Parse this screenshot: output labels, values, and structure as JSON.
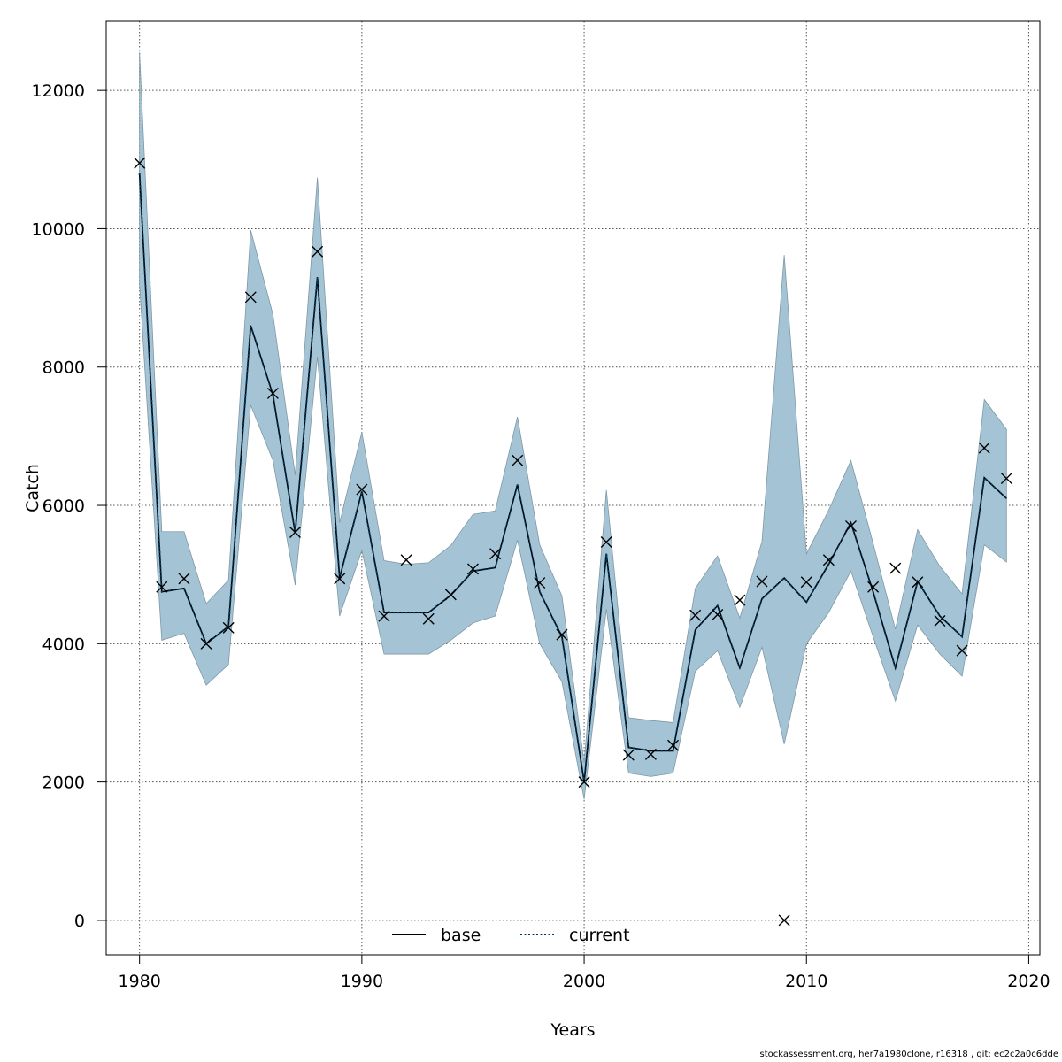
{
  "chart_data": {
    "type": "line",
    "xlabel": "Years",
    "ylabel": "Catch",
    "xlim": [
      1978.5,
      2020.5
    ],
    "ylim": [
      -500,
      13000
    ],
    "xticks": [
      1980,
      1990,
      2000,
      2010,
      2020
    ],
    "yticks": [
      0,
      2000,
      4000,
      6000,
      8000,
      10000,
      12000
    ],
    "grid": true,
    "legend": {
      "position": "bottom-center",
      "entries": [
        "base",
        "current"
      ]
    },
    "x": [
      1980,
      1981,
      1982,
      1983,
      1984,
      1985,
      1986,
      1987,
      1988,
      1989,
      1990,
      1991,
      1992,
      1993,
      1994,
      1995,
      1996,
      1997,
      1998,
      1999,
      2000,
      2001,
      2002,
      2003,
      2004,
      2005,
      2006,
      2007,
      2008,
      2009,
      2010,
      2011,
      2012,
      2013,
      2014,
      2015,
      2016,
      2017,
      2018,
      2019
    ],
    "series": [
      {
        "name": "base",
        "style": "solid",
        "color": "#000000",
        "values": [
          10800,
          4750,
          4800,
          4000,
          4250,
          8600,
          7600,
          5600,
          9300,
          4950,
          6200,
          4450,
          4450,
          4450,
          4700,
          5050,
          5100,
          6300,
          4750,
          4100,
          2000,
          5300,
          2500,
          2450,
          2450,
          4200,
          4550,
          3650,
          4650,
          4950,
          4600,
          5150,
          5750,
          4750,
          3650,
          4900,
          4400,
          4100,
          6400,
          6100
        ]
      },
      {
        "name": "current",
        "style": "dotted",
        "color": "#003a63",
        "values": [
          10800,
          4750,
          4800,
          4000,
          4250,
          8600,
          7600,
          5600,
          9300,
          4950,
          6200,
          4450,
          4450,
          4450,
          4700,
          5050,
          5100,
          6300,
          4750,
          4100,
          2000,
          5300,
          2500,
          2450,
          2450,
          4200,
          4550,
          3650,
          4650,
          4950,
          4600,
          5150,
          5750,
          4750,
          3650,
          4900,
          4400,
          4100,
          6400,
          6100
        ]
      }
    ],
    "band": {
      "color": "#a4c4d5",
      "lower": [
        9200,
        4050,
        4150,
        3400,
        3700,
        7450,
        6650,
        4850,
        8150,
        4400,
        5350,
        3850,
        3850,
        3850,
        4050,
        4300,
        4400,
        5500,
        4000,
        3450,
        1750,
        4500,
        2130,
        2080,
        2130,
        3600,
        3900,
        3080,
        3950,
        2550,
        4000,
        4450,
        5050,
        4100,
        3170,
        4270,
        3850,
        3530,
        5430,
        5180
      ],
      "upper": [
        12550,
        5620,
        5620,
        4580,
        4920,
        9980,
        8760,
        6440,
        10740,
        5750,
        7060,
        5200,
        5150,
        5170,
        5420,
        5870,
        5920,
        7280,
        5430,
        4690,
        2280,
        6220,
        2930,
        2890,
        2860,
        4800,
        5270,
        4370,
        5480,
        9620,
        5300,
        5930,
        6650,
        5450,
        4210,
        5650,
        5120,
        4720,
        7530,
        7100
      ]
    },
    "observations": {
      "marker": "x",
      "values": [
        10950,
        4820,
        4940,
        4000,
        4230,
        9010,
        7620,
        5610,
        9670,
        4940,
        6230,
        4400,
        5210,
        4360,
        4710,
        5080,
        5300,
        6650,
        4880,
        4130,
        2000,
        5470,
        2390,
        2400,
        2530,
        4410,
        4420,
        4630,
        4900,
        0,
        4890,
        5210,
        5700,
        4820,
        5090,
        4890,
        4330,
        3900,
        6830,
        6390
      ]
    }
  },
  "footer": {
    "text": "stockassessment.org, her7a1980clone, r16318 , git: ec2c2a0c6dde"
  }
}
